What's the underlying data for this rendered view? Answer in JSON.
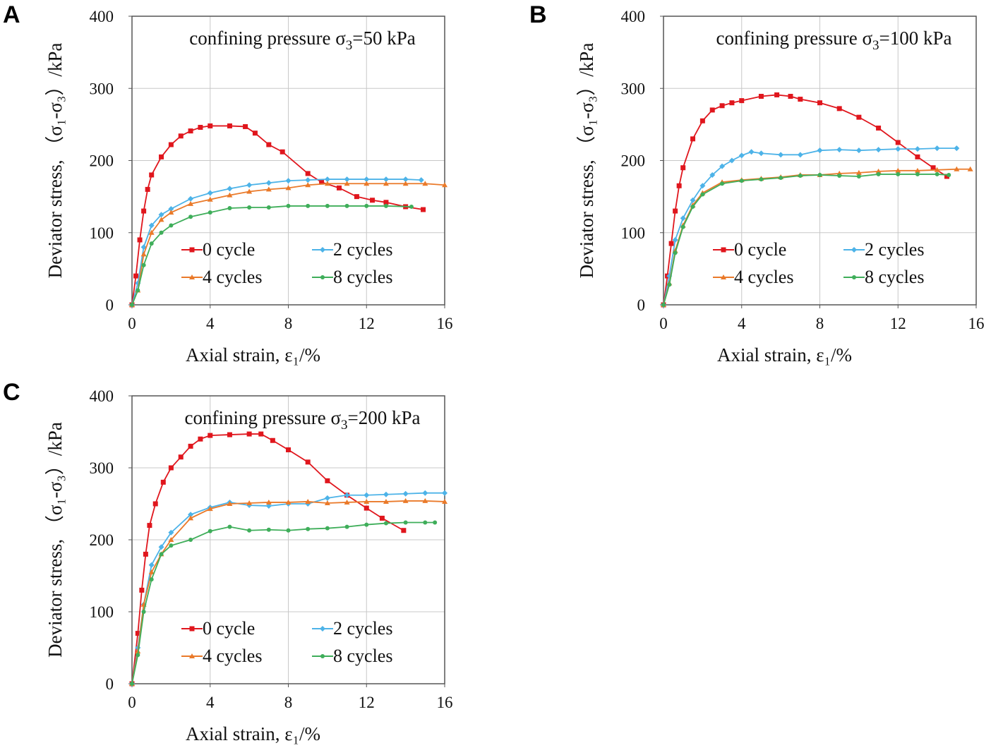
{
  "legend_labels": [
    "0 cycle",
    "2 cycles",
    "4 cycles",
    "8 cycles"
  ],
  "colors": {
    "0 cycle": "#e0161d",
    "2 cycles": "#4db3e8",
    "4 cycles": "#ea7a2a",
    "8 cycles": "#3fae5a",
    "grid": "#c8c8c8",
    "axis": "#555555"
  },
  "chart_data": [
    {
      "panel": "A",
      "type": "line",
      "title": {
        "pre": "confining pressure σ",
        "sub": "3",
        "post": "=50 kPa"
      },
      "xlabel": "Axial strain, ε₁/%",
      "ylabel": "Deviator stress, （σ₁-σ₃）/kPa",
      "xlim": [
        0,
        16
      ],
      "ylim": [
        0,
        400
      ],
      "xticks": [
        0,
        4,
        8,
        12,
        16
      ],
      "yticks": [
        0,
        100,
        200,
        300,
        400
      ],
      "grid": true,
      "legend": "bottom-center",
      "series": [
        {
          "name": "0 cycle",
          "marker": "square",
          "x": [
            0,
            0.2,
            0.4,
            0.6,
            0.8,
            1,
            1.5,
            2,
            2.5,
            3,
            3.5,
            4,
            5,
            5.8,
            6.3,
            7,
            7.7,
            9,
            9.7,
            10.6,
            11.5,
            12.3,
            13,
            14,
            14.9
          ],
          "y": [
            0,
            40,
            90,
            130,
            160,
            180,
            205,
            222,
            234,
            241,
            246,
            248,
            248,
            247,
            238,
            222,
            212,
            182,
            170,
            162,
            150,
            145,
            142,
            136,
            132
          ]
        },
        {
          "name": "2 cycles",
          "marker": "diamond",
          "x": [
            0,
            0.3,
            0.6,
            1,
            1.5,
            2,
            3,
            4,
            5,
            6,
            7,
            8,
            9,
            10,
            11,
            12,
            13,
            14,
            14.8
          ],
          "y": [
            0,
            30,
            80,
            110,
            125,
            133,
            147,
            155,
            161,
            166,
            169,
            172,
            173,
            174,
            174,
            174,
            174,
            174,
            173
          ]
        },
        {
          "name": "4 cycles",
          "marker": "triangle",
          "x": [
            0,
            0.3,
            0.6,
            1,
            1.5,
            2,
            3,
            4,
            5,
            6,
            7,
            8,
            9,
            10,
            11,
            12,
            13,
            14,
            15,
            16
          ],
          "y": [
            0,
            20,
            70,
            100,
            118,
            128,
            140,
            146,
            152,
            157,
            160,
            162,
            166,
            168,
            168,
            168,
            168,
            168,
            168,
            166
          ]
        },
        {
          "name": "8 cycles",
          "marker": "circle",
          "x": [
            0,
            0.3,
            0.6,
            1,
            1.5,
            2,
            3,
            4,
            5,
            6,
            7,
            8,
            9,
            10,
            11,
            12,
            13,
            14.3
          ],
          "y": [
            0,
            20,
            55,
            85,
            100,
            110,
            122,
            128,
            134,
            135,
            135,
            137,
            137,
            137,
            137,
            137,
            137,
            136
          ]
        }
      ]
    },
    {
      "panel": "B",
      "type": "line",
      "title": {
        "pre": "confining pressure σ",
        "sub": "3",
        "post": "=100 kPa"
      },
      "xlabel": "Axial strain, ε₁/%",
      "ylabel": "Deviator stress, （σ₁-σ₃）/kPa",
      "xlim": [
        0,
        16
      ],
      "ylim": [
        0,
        400
      ],
      "xticks": [
        0,
        4,
        8,
        12,
        16
      ],
      "yticks": [
        0,
        100,
        200,
        300,
        400
      ],
      "grid": true,
      "legend": "bottom-center",
      "series": [
        {
          "name": "0 cycle",
          "marker": "square",
          "x": [
            0,
            0.2,
            0.4,
            0.6,
            0.8,
            1,
            1.5,
            2,
            2.5,
            3,
            3.5,
            4,
            5,
            5.8,
            6.5,
            7,
            8,
            9,
            10,
            11,
            12,
            13,
            13.8,
            14.5
          ],
          "y": [
            0,
            40,
            85,
            130,
            165,
            190,
            230,
            255,
            270,
            276,
            280,
            283,
            289,
            291,
            289,
            285,
            280,
            272,
            260,
            245,
            225,
            205,
            190,
            178
          ]
        },
        {
          "name": "2 cycles",
          "marker": "diamond",
          "x": [
            0,
            0.3,
            0.6,
            1,
            1.5,
            2,
            2.5,
            3,
            3.5,
            4,
            4.5,
            5,
            6,
            7,
            8,
            9,
            10,
            11,
            12,
            13,
            14,
            15
          ],
          "y": [
            0,
            40,
            90,
            120,
            145,
            165,
            180,
            192,
            200,
            207,
            212,
            210,
            208,
            208,
            214,
            215,
            214,
            215,
            216,
            216,
            217,
            217
          ]
        },
        {
          "name": "4 cycles",
          "marker": "triangle",
          "x": [
            0,
            0.3,
            0.6,
            1,
            1.5,
            2,
            3,
            4,
            5,
            6,
            7,
            8,
            9,
            10,
            11,
            12,
            13,
            14,
            15,
            15.7
          ],
          "y": [
            0,
            30,
            75,
            110,
            138,
            155,
            170,
            173,
            175,
            177,
            180,
            180,
            182,
            183,
            185,
            186,
            186,
            187,
            188,
            188
          ]
        },
        {
          "name": "8 cycles",
          "marker": "circle",
          "x": [
            0,
            0.3,
            0.6,
            1,
            1.5,
            2,
            3,
            4,
            5,
            6,
            7,
            8,
            9,
            10,
            11,
            12,
            13,
            14,
            14.6
          ],
          "y": [
            0,
            28,
            72,
            108,
            136,
            153,
            168,
            172,
            174,
            176,
            179,
            180,
            179,
            178,
            181,
            181,
            181,
            181,
            180
          ]
        }
      ]
    },
    {
      "panel": "C",
      "type": "line",
      "title": {
        "pre": "confining pressure σ",
        "sub": "3",
        "post": "=200 kPa"
      },
      "xlabel": "Axial strain, ε₁/%",
      "ylabel": "Deviator stress, （σ₁-σ₃）/kPa",
      "xlim": [
        0,
        16
      ],
      "ylim": [
        0,
        400
      ],
      "xticks": [
        0,
        4,
        8,
        12,
        16
      ],
      "yticks": [
        0,
        100,
        200,
        300,
        400
      ],
      "grid": true,
      "legend": "bottom-center",
      "series": [
        {
          "name": "0 cycle",
          "marker": "square",
          "x": [
            0,
            0.3,
            0.5,
            0.7,
            0.9,
            1.2,
            1.6,
            2,
            2.5,
            3,
            3.5,
            4,
            5,
            6,
            6.6,
            7.2,
            8,
            9,
            10,
            11,
            12,
            12.8,
            13.9
          ],
          "y": [
            0,
            70,
            130,
            180,
            220,
            250,
            280,
            300,
            315,
            330,
            340,
            345,
            346,
            347,
            347,
            338,
            325,
            308,
            282,
            262,
            244,
            230,
            213
          ]
        },
        {
          "name": "2 cycles",
          "marker": "diamond",
          "x": [
            0,
            0.3,
            0.6,
            1,
            1.5,
            2,
            3,
            4,
            5,
            6,
            7,
            8,
            9,
            10,
            11,
            12,
            13,
            14,
            15,
            16
          ],
          "y": [
            0,
            50,
            110,
            165,
            190,
            210,
            235,
            245,
            252,
            248,
            247,
            250,
            250,
            258,
            262,
            262,
            263,
            264,
            265,
            265
          ]
        },
        {
          "name": "4 cycles",
          "marker": "triangle",
          "x": [
            0,
            0.3,
            0.6,
            1,
            1.5,
            2,
            3,
            4,
            5,
            6,
            7,
            8,
            9,
            10,
            11,
            12,
            13,
            14,
            15,
            16
          ],
          "y": [
            0,
            45,
            110,
            155,
            180,
            200,
            230,
            243,
            250,
            251,
            252,
            252,
            253,
            251,
            252,
            253,
            253,
            254,
            254,
            253
          ]
        },
        {
          "name": "8 cycles",
          "marker": "circle",
          "x": [
            0,
            0.3,
            0.6,
            1,
            1.5,
            2,
            3,
            4,
            5,
            6,
            7,
            8,
            9,
            10,
            11,
            12,
            13,
            14,
            15,
            15.5
          ],
          "y": [
            0,
            40,
            100,
            145,
            180,
            192,
            200,
            212,
            218,
            213,
            214,
            213,
            215,
            216,
            218,
            221,
            223,
            224,
            224,
            224
          ]
        }
      ]
    }
  ]
}
